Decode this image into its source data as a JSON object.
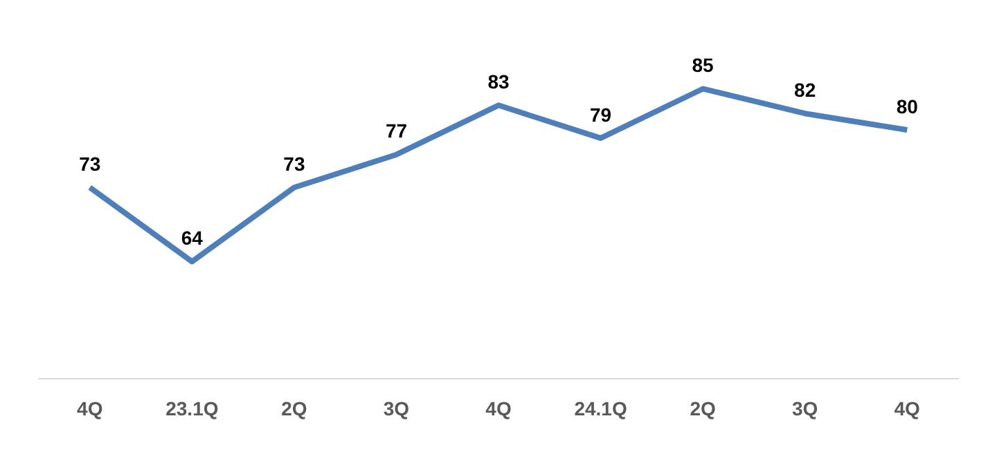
{
  "chart_data": {
    "type": "line",
    "categories": [
      "4Q",
      "23.1Q",
      "2Q",
      "3Q",
      "4Q",
      "24.1Q",
      "2Q",
      "3Q",
      "4Q"
    ],
    "series": [
      {
        "color": "#4f7fba",
        "values": [
          73,
          64,
          73,
          77,
          83,
          79,
          85,
          82,
          80
        ]
      }
    ],
    "data_labels": true,
    "grid": false,
    "legend": false,
    "marker": "none",
    "line_style": "solid"
  }
}
